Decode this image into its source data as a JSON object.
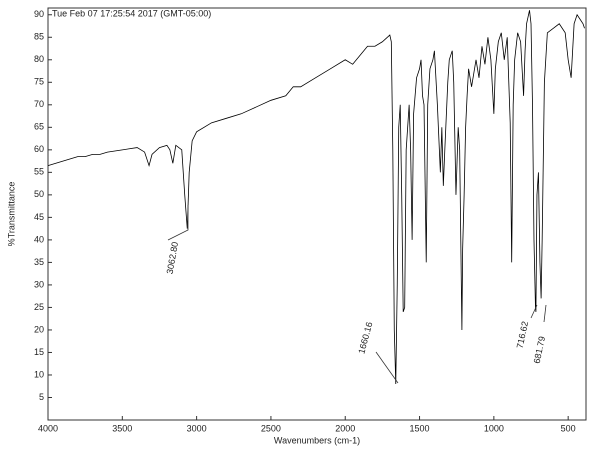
{
  "chart_data": {
    "type": "line",
    "subtitle": "Tue Feb 07 17:25:54 2017 (GMT-05:00)",
    "x_label": "Wavenumbers (cm-1)",
    "y_label": "%Transmittance",
    "annotations": [
      "3062.80",
      "1660.16",
      "716.62",
      "681.79"
    ],
    "color": "#000000",
    "xlim": [
      4000,
      380
    ],
    "ylim": [
      0,
      91.5
    ],
    "xticks": [
      4000,
      3500,
      3000,
      2500,
      2000,
      1500,
      1000,
      500
    ],
    "yticks": [
      5,
      10,
      15,
      20,
      25,
      30,
      35,
      40,
      45,
      50,
      55,
      60,
      65,
      70,
      75,
      80,
      85,
      90
    ],
    "grid": false,
    "x": [
      4000,
      3900,
      3850,
      3800,
      3750,
      3700,
      3650,
      3600,
      3500,
      3400,
      3350,
      3320,
      3300,
      3250,
      3200,
      3180,
      3160,
      3140,
      3100,
      3080,
      3063,
      3050,
      3030,
      3000,
      2900,
      2800,
      2700,
      2600,
      2500,
      2400,
      2350,
      2300,
      2200,
      2100,
      2000,
      1950,
      1900,
      1850,
      1800,
      1750,
      1700,
      1690,
      1680,
      1670,
      1660,
      1650,
      1640,
      1630,
      1620,
      1610,
      1600,
      1590,
      1580,
      1570,
      1560,
      1550,
      1540,
      1520,
      1500,
      1490,
      1480,
      1470,
      1455,
      1445,
      1430,
      1410,
      1400,
      1380,
      1360,
      1350,
      1340,
      1330,
      1310,
      1300,
      1280,
      1270,
      1255,
      1240,
      1230,
      1215,
      1210,
      1200,
      1190,
      1180,
      1170,
      1150,
      1120,
      1100,
      1080,
      1060,
      1040,
      1020,
      1000,
      990,
      970,
      950,
      930,
      910,
      890,
      880,
      870,
      860,
      840,
      820,
      800,
      790,
      780,
      760,
      750,
      740,
      730,
      720,
      717,
      710,
      700,
      690,
      682,
      675,
      660,
      640,
      600,
      560,
      520,
      500,
      480,
      470,
      460,
      440,
      420,
      400,
      390
    ],
    "values": [
      56.5,
      57.5,
      58,
      58.5,
      58.5,
      59,
      59,
      59.5,
      60,
      60.5,
      59.5,
      56.5,
      59,
      60.5,
      61,
      60,
      57,
      61,
      60,
      50,
      42.5,
      55,
      62,
      64,
      66,
      67,
      68,
      69.5,
      71,
      72,
      74,
      74,
      76,
      78,
      80,
      79,
      81,
      83,
      83,
      84,
      85.5,
      84,
      60,
      20,
      8,
      30,
      65,
      70,
      50,
      24,
      25,
      60,
      65,
      70,
      60,
      40,
      68,
      76,
      78,
      80,
      72,
      70,
      35,
      70,
      78,
      80,
      82,
      70,
      55,
      65,
      52,
      60,
      75,
      80,
      82,
      75,
      50,
      65,
      60,
      20,
      38,
      50,
      65,
      72,
      78,
      74,
      80,
      76,
      83,
      79,
      85,
      80,
      68,
      78,
      84,
      86,
      80,
      85,
      66,
      35,
      70,
      80,
      86,
      84,
      72,
      82,
      88,
      91,
      88,
      70,
      40,
      25,
      24,
      50,
      55,
      35,
      27,
      40,
      75,
      86,
      87,
      88,
      86,
      80,
      76,
      82,
      88,
      90,
      89,
      88,
      87
    ]
  }
}
